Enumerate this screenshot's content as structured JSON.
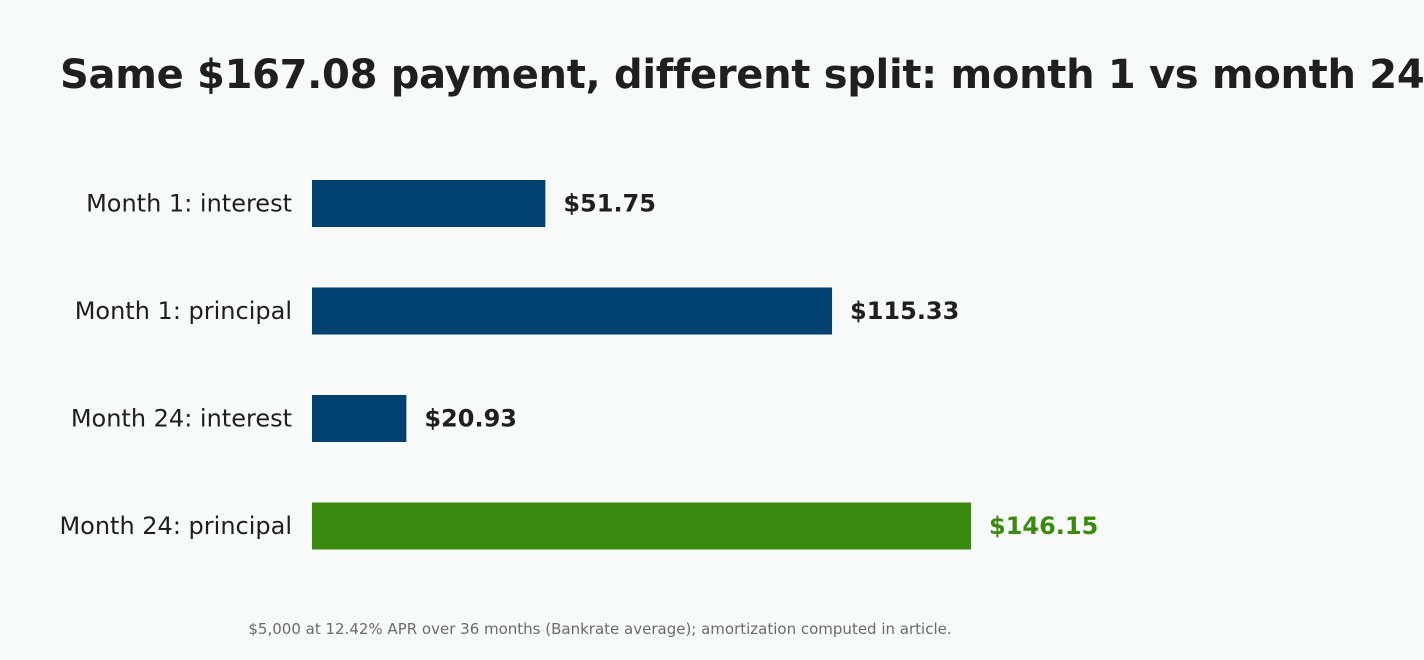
{
  "chart_data": {
    "type": "bar",
    "orientation": "horizontal",
    "title": "Same $167.08 payment, different split: month 1 vs month 24",
    "categories": [
      "Month 1: interest",
      "Month 1: principal",
      "Month 24: interest",
      "Month 24: principal"
    ],
    "values": [
      51.75,
      115.33,
      20.93,
      146.15
    ],
    "value_labels": [
      "$51.75",
      "$115.33",
      "$20.93",
      "$146.15"
    ],
    "bar_colors": [
      "#004170",
      "#004170",
      "#004170",
      "#3b8a10"
    ],
    "label_colors": [
      "#1f1f1f",
      "#1f1f1f",
      "#1f1f1f",
      "#3b8a10"
    ],
    "xlim": [
      0,
      146.15
    ],
    "grid": false,
    "legend": "none",
    "footnote": "$5,000 at 12.42% APR over 36 months (Bankrate average); amortization computed in article."
  }
}
